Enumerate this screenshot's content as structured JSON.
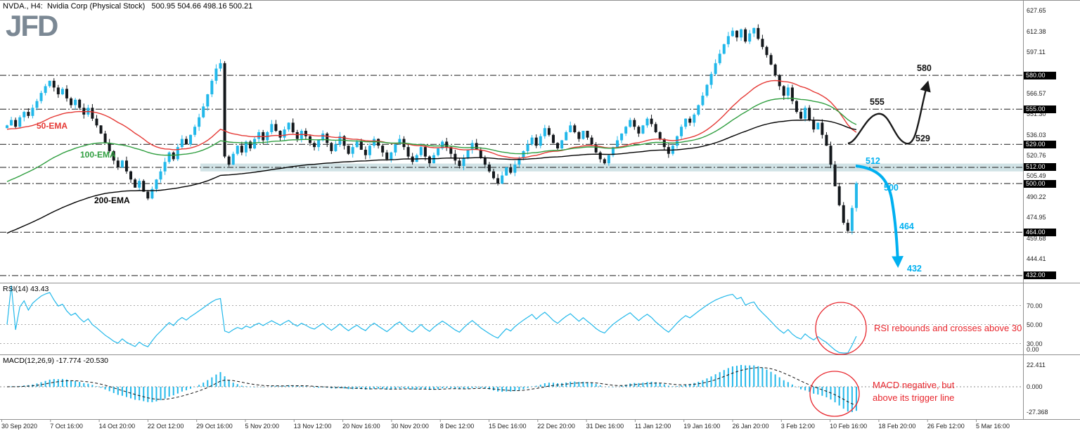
{
  "header": {
    "symbol_line": "NVDA., H4:  Nvidia Corp (Physical Stock)   500.95 504.66 498.16 500.21",
    "logo": "JFD"
  },
  "colors": {
    "up_candle": "#22b8ea",
    "down_candle": "#14181c",
    "ema50": "#e53935",
    "ema100": "#2f9e3f",
    "ema200": "#000000",
    "level_line": "#1a1a1a",
    "band": "#c2d9de",
    "annotation_red": "#e8262d",
    "projection_black": "#1a1a1a",
    "projection_cyan": "#00b0f0",
    "tag_bg": "#000000",
    "tag_text": "#ffffff",
    "rsi_line": "#22b8ea",
    "macd_hist": "#22b8ea",
    "macd_signal": "#111111",
    "grid": "#aaaaaa",
    "border": "#909090"
  },
  "chart_data": {
    "type": "candlestick",
    "symbol": "NVDA",
    "timeframe": "H4",
    "title": "NVDA., H4:  Nvidia Corp (Physical Stock)",
    "ohlc_current": {
      "open": 500.95,
      "high": 504.66,
      "low": 498.16,
      "close": 500.21
    },
    "ylim": [
      428,
      635
    ],
    "closes": [
      543,
      547,
      542,
      549,
      553,
      550,
      556,
      561,
      567,
      572,
      576,
      571,
      566,
      570,
      563,
      558,
      562,
      556,
      551,
      556,
      548,
      543,
      537,
      530,
      524,
      517,
      512,
      517,
      509,
      503,
      497,
      502,
      494,
      489,
      496,
      503,
      509,
      516,
      523,
      518,
      527,
      533,
      529,
      536,
      542,
      549,
      557,
      566,
      576,
      585,
      589,
      520,
      514,
      522,
      528,
      523,
      531,
      526,
      533,
      538,
      532,
      538,
      544,
      539,
      534,
      540,
      545,
      538,
      533,
      539,
      535,
      530,
      527,
      532,
      537,
      530,
      524,
      529,
      535,
      528,
      522,
      527,
      531,
      525,
      521,
      528,
      533,
      528,
      523,
      518,
      523,
      529,
      533,
      527,
      520,
      516,
      521,
      527,
      520,
      515,
      521,
      526,
      531,
      527,
      522,
      517,
      513,
      519,
      525,
      530,
      525,
      519,
      514,
      509,
      504,
      500,
      506,
      512,
      508,
      514,
      519,
      524,
      529,
      534,
      528,
      535,
      541,
      536,
      530,
      526,
      532,
      538,
      543,
      538,
      533,
      539,
      534,
      529,
      523,
      518,
      515,
      521,
      527,
      532,
      537,
      542,
      547,
      542,
      537,
      543,
      548,
      544,
      538,
      533,
      527,
      522,
      528,
      535,
      542,
      548,
      545,
      551,
      558,
      565,
      573,
      581,
      589,
      596,
      603,
      609,
      613,
      608,
      614,
      605,
      611,
      615,
      607,
      601,
      595,
      588,
      580,
      572,
      565,
      571,
      561,
      553,
      548,
      556,
      547,
      540,
      545,
      536,
      528,
      514,
      498,
      484,
      471,
      465,
      482,
      500.21
    ],
    "x_labels": [
      "30 Sep 2020",
      "7 Oct 16:00",
      "14 Oct 20:00",
      "22 Oct 12:00",
      "29 Oct 16:00",
      "5 Nov 20:00",
      "13 Nov 12:00",
      "20 Nov 16:00",
      "30 Nov 20:00",
      "8 Dec 12:00",
      "15 Dec 16:00",
      "22 Dec 20:00",
      "31 Dec 16:00",
      "11 Jan 12:00",
      "19 Jan 16:00",
      "26 Jan 20:00",
      "3 Feb 12:00",
      "10 Feb 16:00",
      "18 Feb 20:00",
      "26 Feb 12:00",
      "5 Mar 16:00"
    ],
    "y_axis_labels": [
      "627.65",
      "612.38",
      "597.11",
      "566.57",
      "551.30",
      "536.03",
      "520.76",
      "505.49",
      "490.22",
      "474.95",
      "459.68",
      "444.41"
    ],
    "level_tags": [
      "580.00",
      "555.00",
      "529.00",
      "512.00",
      "500.00",
      "464.00",
      "432.00"
    ],
    "support_band": {
      "from": 509.0,
      "to": 514.8
    },
    "emas": [
      {
        "label": "50-EMA",
        "color": "#e53935",
        "period": 35,
        "init": 540
      },
      {
        "label": "100-EMA",
        "color": "#2f9e3f",
        "period": 60,
        "init": 500
      },
      {
        "label": "200-EMA",
        "color": "#000000",
        "period": 120,
        "init": 462
      }
    ],
    "projection_up": {
      "labels": [
        "555",
        "529",
        "580"
      ]
    },
    "projection_down": {
      "labels": [
        "512",
        "500",
        "464",
        "432"
      ]
    },
    "rsi": {
      "title": "RSI(14) 43.43",
      "value": 43.43,
      "period": 14,
      "levels": [
        70,
        50,
        30
      ],
      "axis_labels": [
        "70.00",
        "50.00",
        "30.00",
        "0.00"
      ],
      "annotation": "RSI rebounds and crosses above 30"
    },
    "macd": {
      "title": "MACD(12,26,9) -17.774 -20.530",
      "fast": 12,
      "slow": 26,
      "signal": 9,
      "macd_value": -17.774,
      "signal_value": -20.53,
      "axis_labels": [
        "22.411",
        "0.000",
        "-27.368"
      ],
      "max": 22.411,
      "min": -27.368,
      "annotation_line1": "MACD negative, but",
      "annotation_line2": "above its trigger line"
    }
  }
}
